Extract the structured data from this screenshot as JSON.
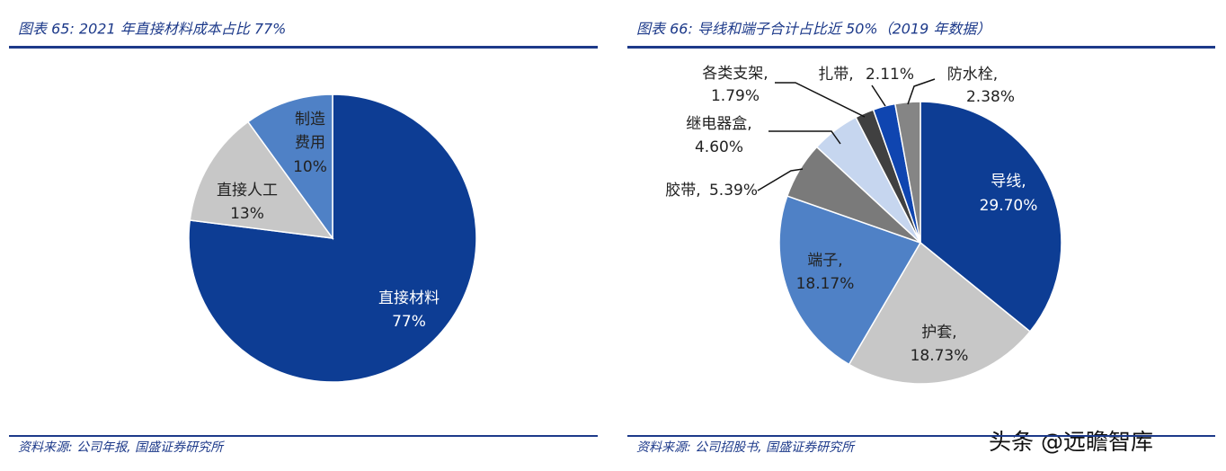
{
  "chart_data": [
    {
      "type": "pie",
      "title": "图表 65:  2021 年直接材料成本占比 77%",
      "categories": [
        "直接材料",
        "直接人工",
        "制造费用"
      ],
      "values": [
        77,
        13,
        10
      ],
      "value_labels": [
        "77%",
        "13%",
        "10%"
      ],
      "colors": [
        "#0d3d94",
        "#c7c7c7",
        "#4f81c6"
      ],
      "source": "资料来源: 公司年报, 国盛证券研究所"
    },
    {
      "type": "pie",
      "title": "图表 66:  导线和端子合计占比近 50%（2019 年数据）",
      "categories": [
        "导线,",
        "护套,",
        "端子,",
        "胶带,",
        "继电器盒,",
        "各类支架,",
        "扎带,",
        "防水栓,"
      ],
      "values": [
        29.7,
        18.73,
        18.17,
        5.39,
        4.6,
        1.79,
        2.11,
        2.38
      ],
      "value_labels": [
        "29.70%",
        "18.73%",
        "18.17%",
        "5.39%",
        "4.60%",
        "1.79%",
        "2.11%",
        "2.38%"
      ],
      "colors": [
        "#0d3d94",
        "#c7c7c7",
        "#4f81c6",
        "#7a7a7a",
        "#c6d6ef",
        "#404040",
        "#0f45b0",
        "#858585"
      ],
      "source": "资料来源: 公司招股书, 国盛证券研究所"
    }
  ],
  "watermark": "头条 @远瞻智库"
}
